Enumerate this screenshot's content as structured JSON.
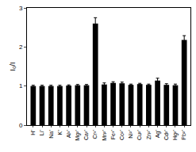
{
  "chart_data": {
    "type": "bar",
    "y_label": "I₀/I",
    "categories": [
      "H⁺",
      "Li⁺",
      "Na⁺",
      "K⁺",
      "Al³⁺",
      "Mg²⁺",
      "Ca²⁺",
      "Cr³⁺",
      "Mn²⁺",
      "Fe³⁺",
      "Co²⁺",
      "Ni²⁺",
      "Cu²⁺",
      "Zn²⁺",
      "Ag⁺",
      "Cd²⁺",
      "Hg²⁺",
      "Pb²⁺"
    ],
    "values": [
      1.0,
      1.0,
      1.0,
      1.0,
      1.01,
      1.02,
      1.02,
      2.6,
      1.04,
      1.08,
      1.07,
      1.03,
      1.05,
      1.03,
      1.14,
      1.03,
      1.02,
      2.18
    ],
    "error": [
      0.02,
      0.02,
      0.02,
      0.02,
      0.02,
      0.02,
      0.02,
      0.15,
      0.04,
      0.03,
      0.03,
      0.02,
      0.02,
      0.02,
      0.06,
      0.03,
      0.03,
      0.11
    ],
    "color": "#000000",
    "ylim": [
      0,
      3
    ],
    "yticks": [
      0,
      1,
      2,
      3
    ],
    "grid": false
  }
}
